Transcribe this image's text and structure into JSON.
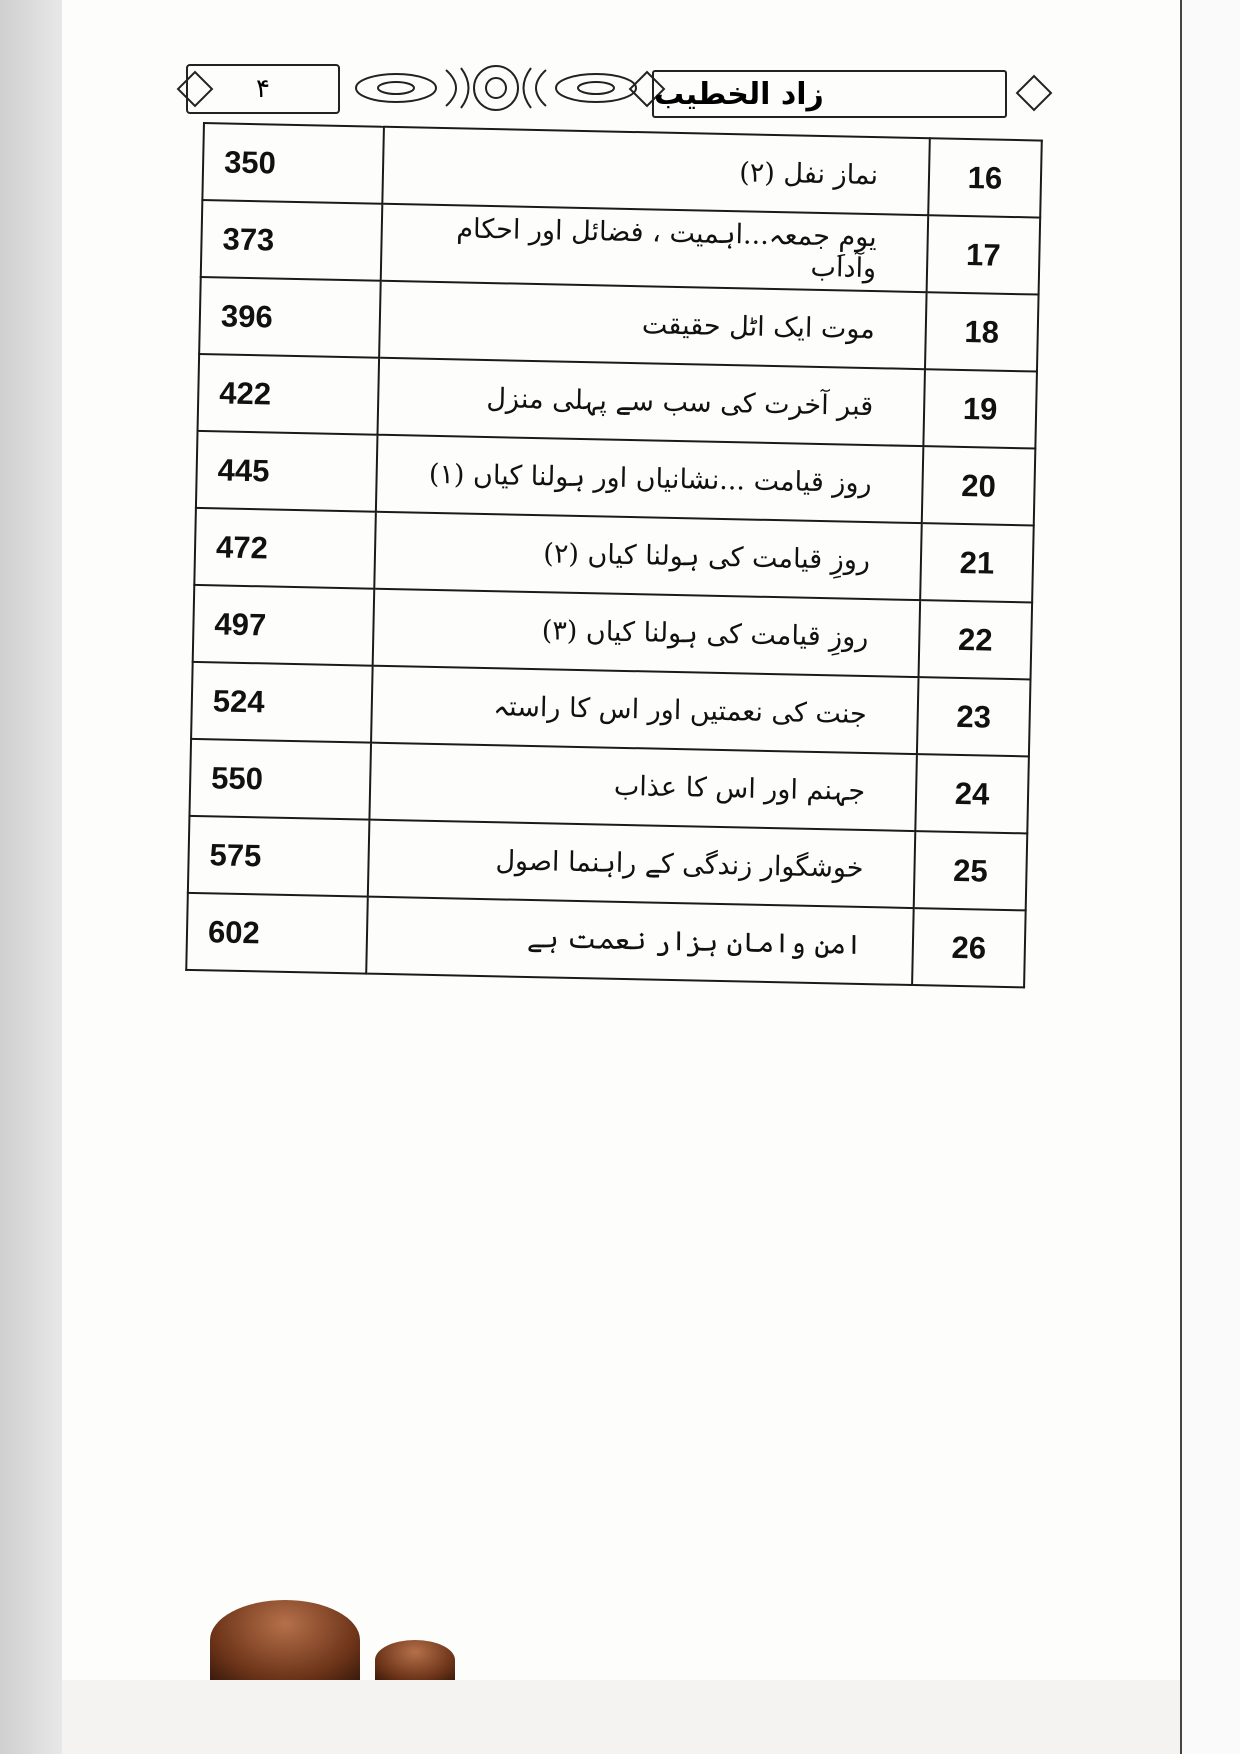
{
  "header": {
    "page_number": "۴",
    "book_title": "زاد الخطیب"
  },
  "toc": [
    {
      "no": "16",
      "title": "نماز نفل (۲)",
      "page": "350"
    },
    {
      "no": "17",
      "title": "یومِ جمعہ...اہمیت ، فضائل اور احکام وآداب",
      "page": "373"
    },
    {
      "no": "18",
      "title": "موت ایک اٹل حقیقت",
      "page": "396"
    },
    {
      "no": "19",
      "title": "قبر آخرت کی سب سے پہلی منزل",
      "page": "422"
    },
    {
      "no": "20",
      "title": "روز قیامت ...نشانیاں اور ہولنا کیاں (۱)",
      "page": "445"
    },
    {
      "no": "21",
      "title": "روزِ قیامت کی ہولنا کیاں (۲)",
      "page": "472"
    },
    {
      "no": "22",
      "title": "روزِ قیامت کی ہولنا کیاں (۳)",
      "page": "497"
    },
    {
      "no": "23",
      "title": "جنت کی نعمتیں اور اس کا راستہ",
      "page": "524"
    },
    {
      "no": "24",
      "title": "جہنم اور اس کا عذاب",
      "page": "550"
    },
    {
      "no": "25",
      "title": "خوشگوار زندگی کے راہنما اصول",
      "page": "575"
    },
    {
      "no": "26",
      "title": "امن وامان ہزار نعمت ہے",
      "page": "602"
    }
  ]
}
